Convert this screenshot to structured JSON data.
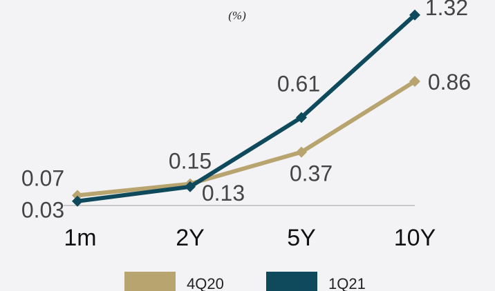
{
  "chart_data": {
    "type": "line",
    "unit_label": "(%)",
    "categories": [
      "1m",
      "2Y",
      "5Y",
      "10Y"
    ],
    "series": [
      {
        "name": "4Q20",
        "color": "#b8a46e",
        "values": [
          0.07,
          0.15,
          0.37,
          0.86
        ],
        "labels": [
          "0.07",
          "0.15",
          "0.37",
          "0.86"
        ]
      },
      {
        "name": "1Q21",
        "color": "#0e4a5c",
        "values": [
          0.03,
          0.13,
          0.61,
          1.32
        ],
        "labels": [
          "0.03",
          "0.13",
          "0.61",
          "1.32"
        ]
      }
    ],
    "ylim": [
      0,
      1.4
    ],
    "grid": false,
    "legend_position": "bottom"
  }
}
